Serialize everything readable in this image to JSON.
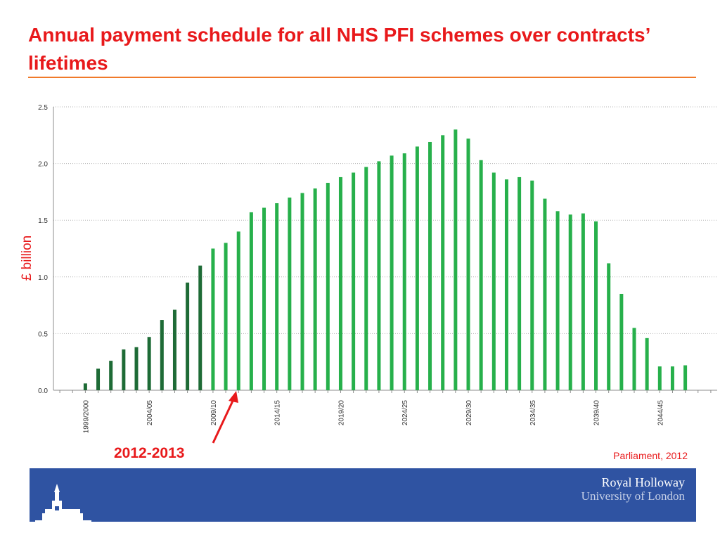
{
  "slide": {
    "title": "Annual payment schedule for all NHS PFI schemes over contracts’ lifetimes",
    "source": "Parliament, 2012",
    "callout_label": "2012-2013"
  },
  "footer": {
    "brand_line1": "Royal Holloway",
    "brand_line2": "University of London"
  },
  "colors": {
    "title": "#e8191b",
    "rule": "#f07a2a",
    "bar_historic": "#1e6b36",
    "bar_future": "#27b04b",
    "footer": "#2f53a2"
  },
  "chart_data": {
    "type": "bar",
    "ylabel": "£ billion",
    "ylim": [
      0,
      2.5
    ],
    "yticks": [
      "0.0",
      "0.5",
      "1.0",
      "1.5",
      "2.0",
      "2.5"
    ],
    "grid": true,
    "categories": [
      "1997/98",
      "1998/99",
      "1999/2000",
      "2000/01",
      "2001/02",
      "2002/03",
      "2003/04",
      "2004/05",
      "2005/06",
      "2006/07",
      "2007/08",
      "2008/09",
      "2009/10",
      "2010/11",
      "2011/12",
      "2012/13",
      "2013/14",
      "2014/15",
      "2015/16",
      "2016/17",
      "2017/18",
      "2018/19",
      "2019/20",
      "2020/21",
      "2021/22",
      "2022/23",
      "2023/24",
      "2024/25",
      "2025/26",
      "2026/27",
      "2027/28",
      "2028/29",
      "2029/30",
      "2030/31",
      "2031/32",
      "2032/33",
      "2033/34",
      "2034/35",
      "2035/36",
      "2036/37",
      "2037/38",
      "2038/39",
      "2039/40",
      "2040/41",
      "2041/42",
      "2042/43",
      "2043/44",
      "2044/45",
      "2045/46",
      "2046/47",
      "2047/48",
      "2048/49"
    ],
    "visible_tick_labels": [
      "1999/2000",
      "2004/05",
      "2009/10",
      "2014/15",
      "2019/20",
      "2024/25",
      "2029/30",
      "2034/35",
      "2039/40",
      "2044/45"
    ],
    "series": [
      {
        "values": [
          0,
          0,
          0.06,
          0.19,
          0.26,
          0.36,
          0.38,
          0.47,
          0.62,
          0.71,
          0.95,
          1.1,
          null,
          null,
          null,
          null,
          null,
          null,
          null,
          null,
          null,
          null,
          null,
          null,
          null,
          null,
          null,
          null,
          null,
          null,
          null,
          null,
          null,
          null,
          null,
          null,
          null,
          null,
          null,
          null,
          null,
          null,
          null,
          null,
          null,
          null,
          null,
          null,
          null,
          null,
          null,
          null
        ]
      },
      {
        "values": [
          null,
          null,
          null,
          null,
          null,
          null,
          null,
          null,
          null,
          null,
          null,
          null,
          1.25,
          1.3,
          1.4,
          1.57,
          1.61,
          1.65,
          1.7,
          1.74,
          1.78,
          1.83,
          1.88,
          1.92,
          1.97,
          2.02,
          2.07,
          2.09,
          2.15,
          2.19,
          2.25,
          2.3,
          2.22,
          2.03,
          1.92,
          1.86,
          1.88,
          1.85,
          1.69,
          1.58,
          1.55,
          1.56,
          1.49,
          1.12,
          0.85,
          0.55,
          0.46,
          0.21,
          0.21,
          0.22,
          0,
          0
        ]
      }
    ]
  }
}
